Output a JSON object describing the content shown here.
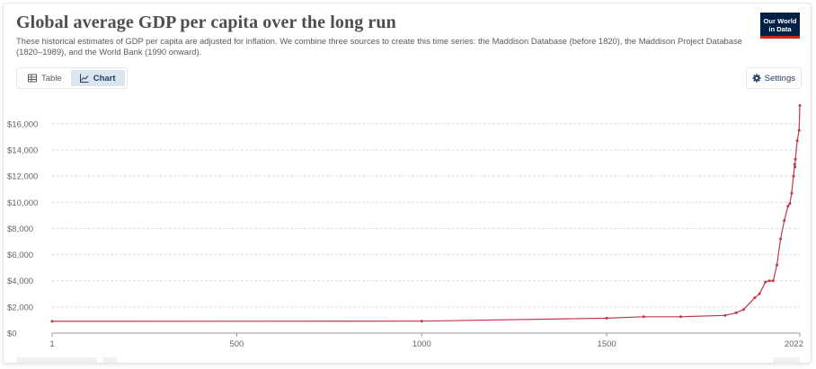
{
  "header": {
    "title": "Global average GDP per capita over the long run",
    "subtitle": "These historical estimates of GDP per capita are adjusted for inflation. We combine three sources to create this time series: the Maddison Database (before 1820), the Maddison Project Database (1820–1989), and the World Bank (1990 onward).",
    "logo_line1": "Our World",
    "logo_line2": "in Data"
  },
  "toolbar": {
    "tab_table": "Table",
    "tab_chart": "Chart",
    "settings": "Settings"
  },
  "colors": {
    "line": "#c2384b",
    "grid": "#dddddd",
    "accent": "#1d3d63"
  },
  "chart_data": {
    "type": "line",
    "title": "Global average GDP per capita over the long run",
    "xlabel": "",
    "ylabel": "",
    "xlim": [
      1,
      2022
    ],
    "ylim": [
      0,
      17500
    ],
    "x_ticks": [
      1,
      500,
      1000,
      1500,
      2022
    ],
    "y_ticks": [
      0,
      2000,
      4000,
      6000,
      8000,
      10000,
      12000,
      14000,
      16000
    ],
    "y_tick_labels": [
      "$0",
      "$2,000",
      "$4,000",
      "$6,000",
      "$8,000",
      "$10,000",
      "$12,000",
      "$14,000",
      "$16,000"
    ],
    "grid": "horizontal-dashed",
    "series": [
      {
        "x": [
          1,
          1000,
          1500,
          1600,
          1700,
          1820,
          1850,
          1870,
          1900,
          1913,
          1929,
          1940,
          1950,
          1960,
          1970,
          1980,
          1990,
          1995,
          2000,
          2005,
          2008,
          2009,
          2010,
          2015,
          2020,
          2022
        ],
        "y": [
          900,
          910,
          1140,
          1250,
          1250,
          1350,
          1550,
          1800,
          2700,
          3000,
          3900,
          4000,
          4000,
          5200,
          7200,
          8600,
          9700,
          9900,
          10700,
          12000,
          12900,
          12700,
          13300,
          14700,
          15500,
          17400
        ]
      }
    ]
  }
}
